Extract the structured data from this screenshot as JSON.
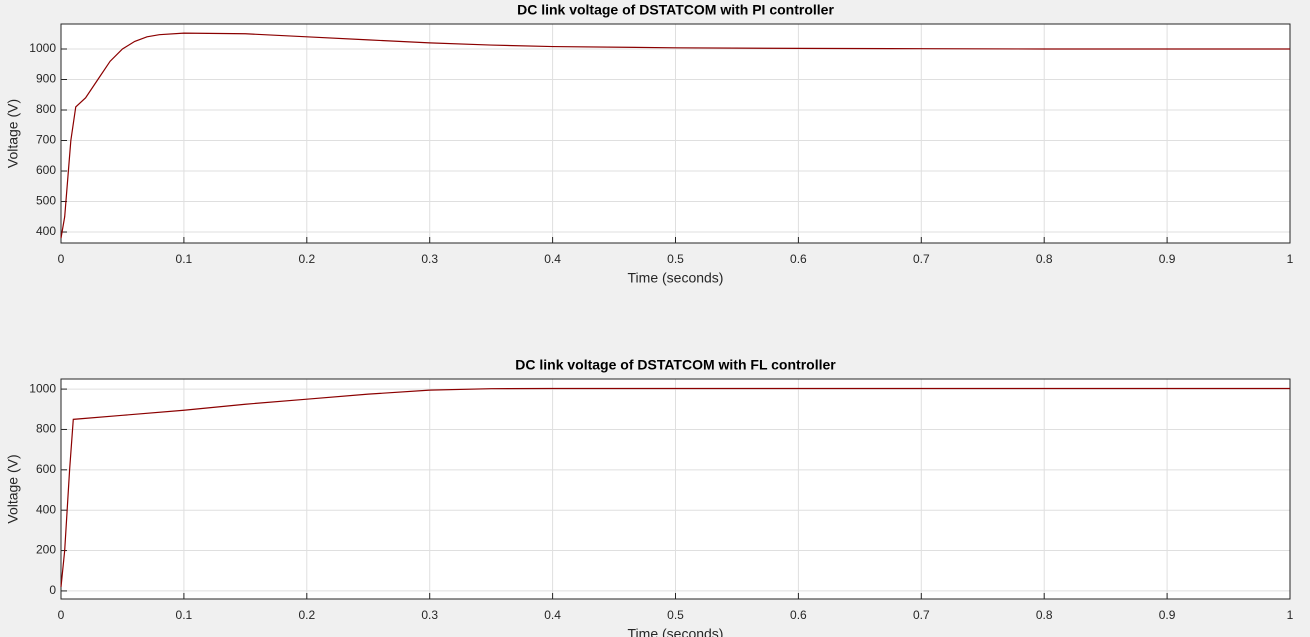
{
  "chart_data": [
    {
      "type": "line",
      "title": "DC link voltage of DSTATCOM with PI controller",
      "x_label": "Time (seconds)",
      "y_label": "Voltage (V)",
      "x": [
        0,
        0.003,
        0.008,
        0.012,
        0.02,
        0.03,
        0.04,
        0.05,
        0.06,
        0.07,
        0.08,
        0.1,
        0.15,
        0.2,
        0.25,
        0.3,
        0.35,
        0.4,
        0.5,
        0.6,
        0.7,
        0.8,
        0.9,
        1.0
      ],
      "series": [
        {
          "color": "#8b0000",
          "values": [
            380,
            450,
            700,
            810,
            840,
            900,
            960,
            1000,
            1025,
            1040,
            1047,
            1052,
            1050,
            1040,
            1030,
            1020,
            1013,
            1008,
            1004,
            1002,
            1001,
            1000,
            1000,
            1000
          ]
        }
      ],
      "xlim": [
        0,
        1
      ],
      "xticks": [
        0,
        0.1,
        0.2,
        0.3,
        0.4,
        0.5,
        0.6,
        0.7,
        0.8,
        0.9,
        1
      ],
      "ylim": [
        364,
        1082
      ],
      "yticks": [
        400,
        500,
        600,
        700,
        800,
        900,
        1000
      ],
      "grid": true
    },
    {
      "type": "line",
      "title": "DC link voltage of DSTATCOM with FL controller",
      "x_label": "Time (seconds)",
      "y_label": "Voltage (V)",
      "x": [
        0,
        0.003,
        0.007,
        0.01,
        0.05,
        0.1,
        0.15,
        0.2,
        0.25,
        0.3,
        0.35,
        0.4,
        0.5,
        1.0
      ],
      "series": [
        {
          "color": "#8b0000",
          "values": [
            20,
            200,
            600,
            850,
            870,
            895,
            925,
            950,
            975,
            995,
            1002,
            1003,
            1003,
            1003
          ]
        }
      ],
      "xlim": [
        0,
        1
      ],
      "xticks": [
        0,
        0.1,
        0.2,
        0.3,
        0.4,
        0.5,
        0.6,
        0.7,
        0.8,
        0.9,
        1
      ],
      "ylim": [
        -40,
        1050
      ],
      "yticks": [
        0,
        200,
        400,
        600,
        800,
        1000
      ],
      "grid": true
    }
  ]
}
